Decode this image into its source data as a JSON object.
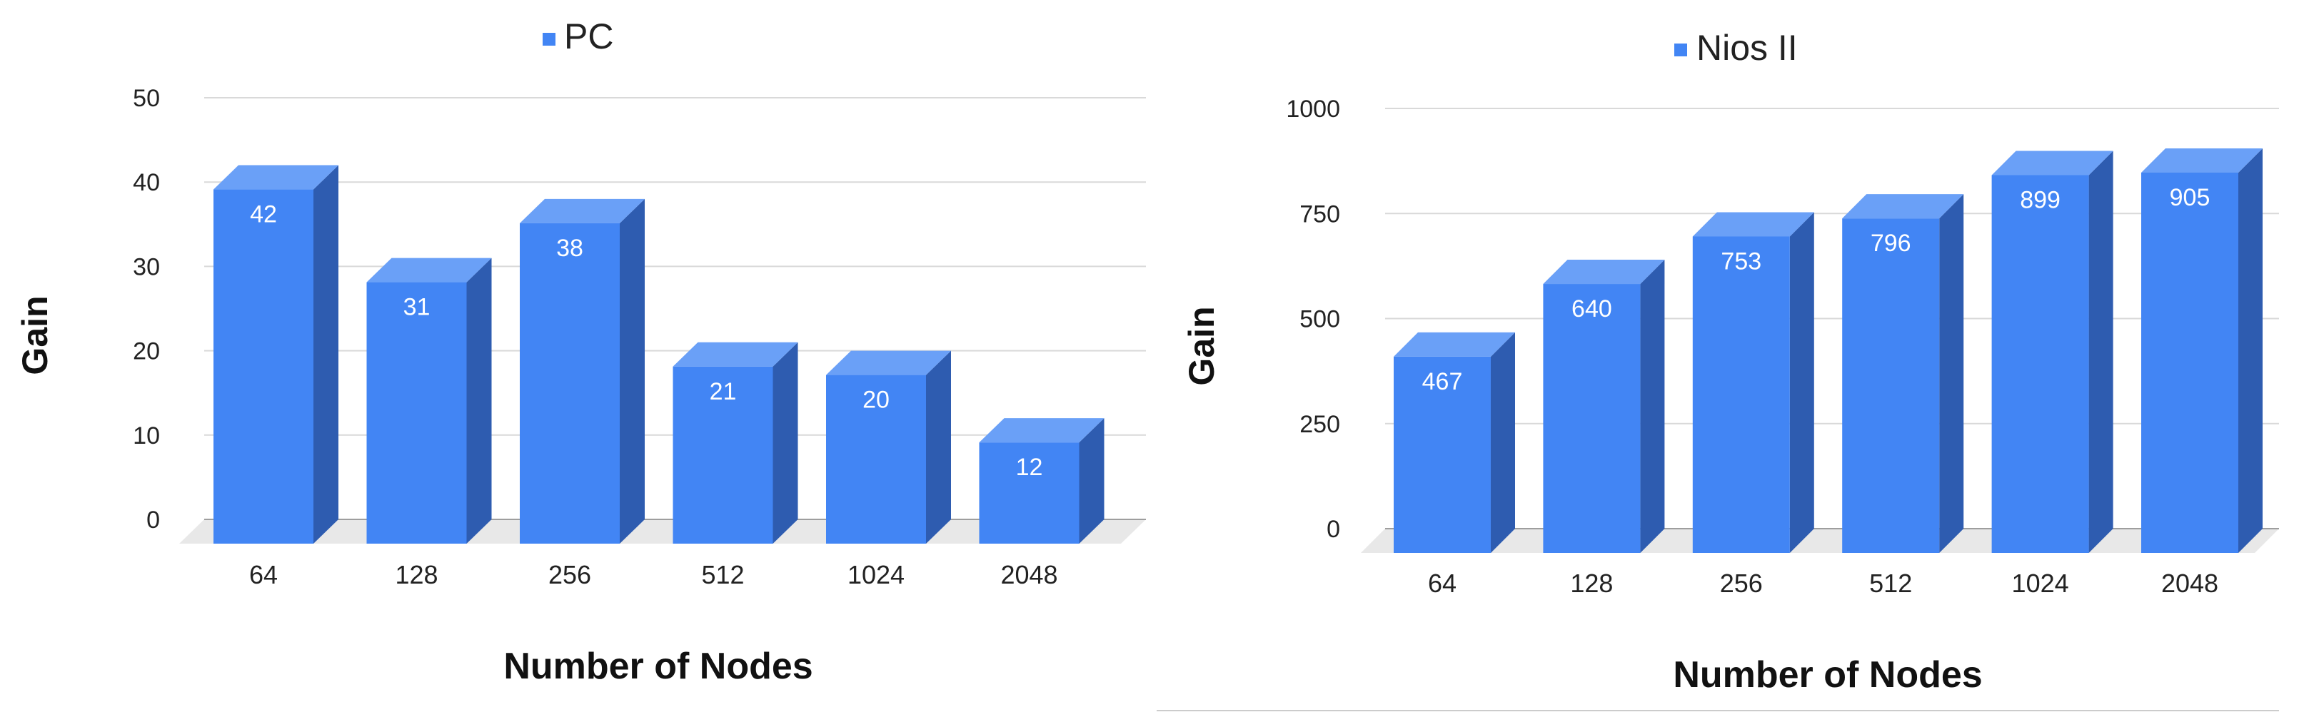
{
  "chart_data": [
    {
      "type": "bar",
      "legend": "PC",
      "legend_placement": "top-center",
      "xlabel": "Number of Nodes",
      "ylabel": "Gain",
      "categories": [
        "64",
        "128",
        "256",
        "512",
        "1024",
        "2048"
      ],
      "values": [
        42,
        31,
        38,
        21,
        20,
        12
      ],
      "yticks": [
        "0",
        "10",
        "20",
        "30",
        "40",
        "50"
      ],
      "ylim": [
        0,
        50
      ],
      "grid": true,
      "style": "3d",
      "colors": {
        "front": "#4285f4",
        "top": "#6aa0f7",
        "side": "#2e5cb0",
        "floor": "#e8e8e8",
        "grid": "#d9d9d9"
      }
    },
    {
      "type": "bar",
      "legend": "Nios II",
      "legend_placement": "top-center",
      "xlabel": "Number of Nodes",
      "ylabel": "Gain",
      "categories": [
        "64",
        "128",
        "256",
        "512",
        "1024",
        "2048"
      ],
      "values": [
        467,
        640,
        753,
        796,
        899,
        905
      ],
      "yticks": [
        "0",
        "250",
        "500",
        "750",
        "1000"
      ],
      "ylim": [
        0,
        1000
      ],
      "grid": true,
      "style": "3d",
      "colors": {
        "front": "#4285f4",
        "top": "#6aa0f7",
        "side": "#2e5cb0",
        "floor": "#e8e8e8",
        "grid": "#d9d9d9"
      }
    }
  ]
}
